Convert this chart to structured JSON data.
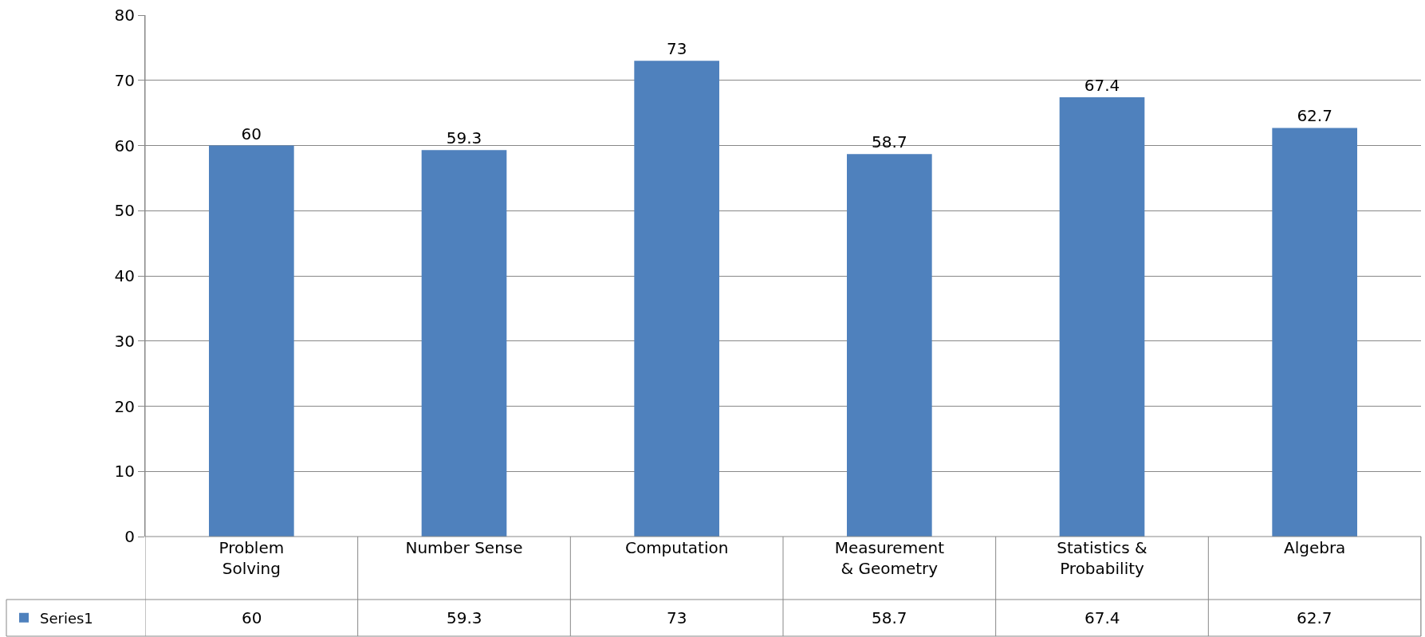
{
  "chart_data": {
    "type": "bar",
    "categories": [
      "Problem Solving",
      "Number Sense",
      "Computation",
      "Measurement & Geometry",
      "Statistics & Probability",
      "Algebra"
    ],
    "series": [
      {
        "name": "Series1",
        "color": "#4f81bd",
        "values": [
          60,
          59.3,
          73,
          58.7,
          67.4,
          62.7
        ],
        "value_labels": [
          "60",
          "59.3",
          "73",
          "58.7",
          "67.4",
          "62.7"
        ]
      }
    ],
    "ylim": [
      0,
      80
    ],
    "yticks": [
      0,
      10,
      20,
      30,
      40,
      50,
      60,
      70,
      80
    ],
    "annotations": [
      "60",
      "59.3",
      "73",
      "58.7",
      "67.4",
      "62.7"
    ],
    "grid": "y",
    "legend": "bottom left"
  }
}
